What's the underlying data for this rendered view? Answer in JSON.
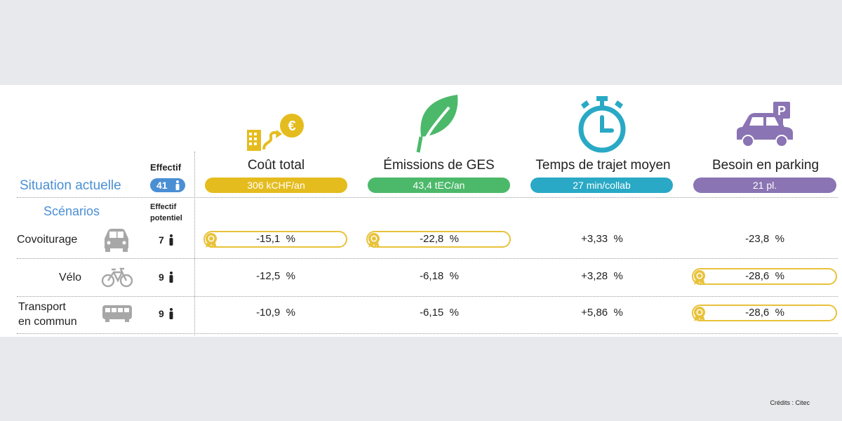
{
  "header": {
    "effectif_label": "Effectif",
    "situation_label": "Situation actuelle",
    "effectif_count": "41"
  },
  "metrics": [
    {
      "label": "Coût total",
      "value": "306 kCHF/an",
      "color": "#e5bc1e",
      "icon": "building-money-icon"
    },
    {
      "label": "Émissions de GES",
      "value": "43,4 tEC/an",
      "color": "#4cb96a",
      "icon": "leaf-icon"
    },
    {
      "label": "Temps de trajet moyen",
      "value": "27 min/collab",
      "color": "#29a9c5",
      "icon": "stopwatch-icon"
    },
    {
      "label": "Besoin en parking",
      "value": "21 pl.",
      "color": "#8a74b3",
      "icon": "car-parking-icon"
    }
  ],
  "scenarios_header": {
    "label": "Scénarios",
    "effectif_potentiel_line1": "Effectif",
    "effectif_potentiel_line2": "potentiel"
  },
  "scenarios": [
    {
      "name": "Covoiturage",
      "icon": "car-icon",
      "count": "7",
      "values": [
        "-15,1  %",
        "-22,8  %",
        "+3,33  %",
        "-23,8  %"
      ],
      "best": [
        true,
        true,
        false,
        false
      ]
    },
    {
      "name": "Vélo",
      "icon": "bicycle-icon",
      "count": "9",
      "values": [
        "-12,5  %",
        "-6,18  %",
        "+3,28  %",
        "-28,6  %"
      ],
      "best": [
        false,
        false,
        false,
        true
      ]
    },
    {
      "name_line1": "Transport",
      "name_line2": "en commun",
      "icon": "bus-icon",
      "count": "9",
      "values": [
        "-10,9  %",
        "-6,15  %",
        "+5,86  %",
        "-28,6  %"
      ],
      "best": [
        false,
        false,
        false,
        true
      ]
    }
  ],
  "credit": "Crédits : Citec",
  "colors": {
    "situation_blue": "#4a8fd4",
    "award_gold": "#e8c23a",
    "icon_gray": "#a7a7a7"
  }
}
